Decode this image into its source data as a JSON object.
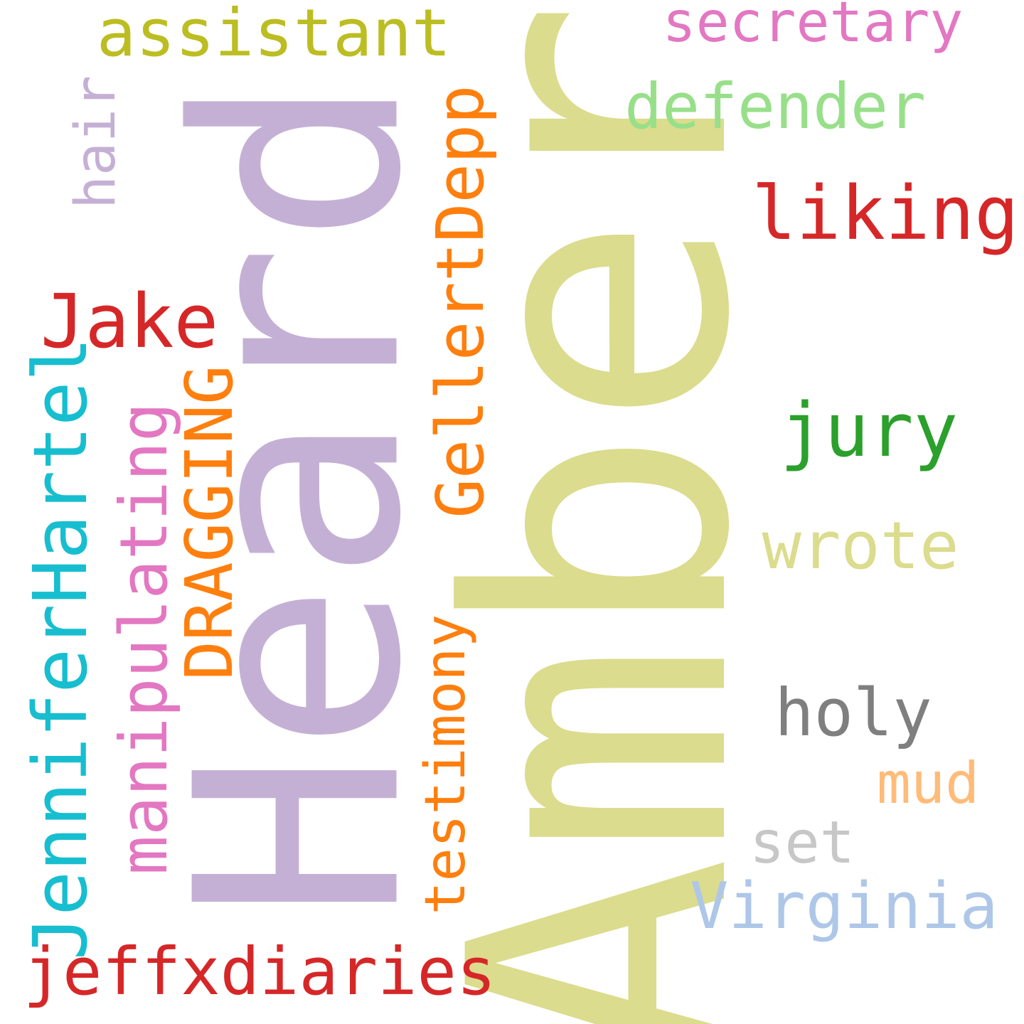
{
  "words": {
    "amber": {
      "text": "Amber",
      "color": "#dbdc8d"
    },
    "heard": {
      "text": "Heard",
      "color": "#c5b0d5"
    },
    "assistant": {
      "text": "assistant",
      "color": "#bcbd22"
    },
    "secretary": {
      "text": "secretary",
      "color": "#e377c2"
    },
    "defender": {
      "text": "defender",
      "color": "#98df8a"
    },
    "liking": {
      "text": "liking",
      "color": "#d62728"
    },
    "hair": {
      "text": "hair",
      "color": "#c5b0d5"
    },
    "gellertdepp": {
      "text": "GellertDepp",
      "color": "#ff7f0e"
    },
    "jake": {
      "text": "Jake",
      "color": "#d62728"
    },
    "jenniferhartel": {
      "text": "JenniferHartel",
      "color": "#17becf"
    },
    "manipulating": {
      "text": "manipulating",
      "color": "#e377c2"
    },
    "dragging": {
      "text": "DRAGGING",
      "color": "#ff7f0e"
    },
    "jury": {
      "text": "jury",
      "color": "#2ca02c"
    },
    "wrote": {
      "text": "wrote",
      "color": "#dbdc8d"
    },
    "testimony": {
      "text": "testimony",
      "color": "#ff7f0e"
    },
    "holy": {
      "text": "holy",
      "color": "#7f7f7f"
    },
    "mud": {
      "text": "mud",
      "color": "#ffbb78"
    },
    "set": {
      "text": "set",
      "color": "#c7c7c7"
    },
    "virginia": {
      "text": "Virginia",
      "color": "#aec7e8"
    },
    "jeffxdiaries": {
      "text": "jeffxdiaries",
      "color": "#d62728"
    }
  }
}
